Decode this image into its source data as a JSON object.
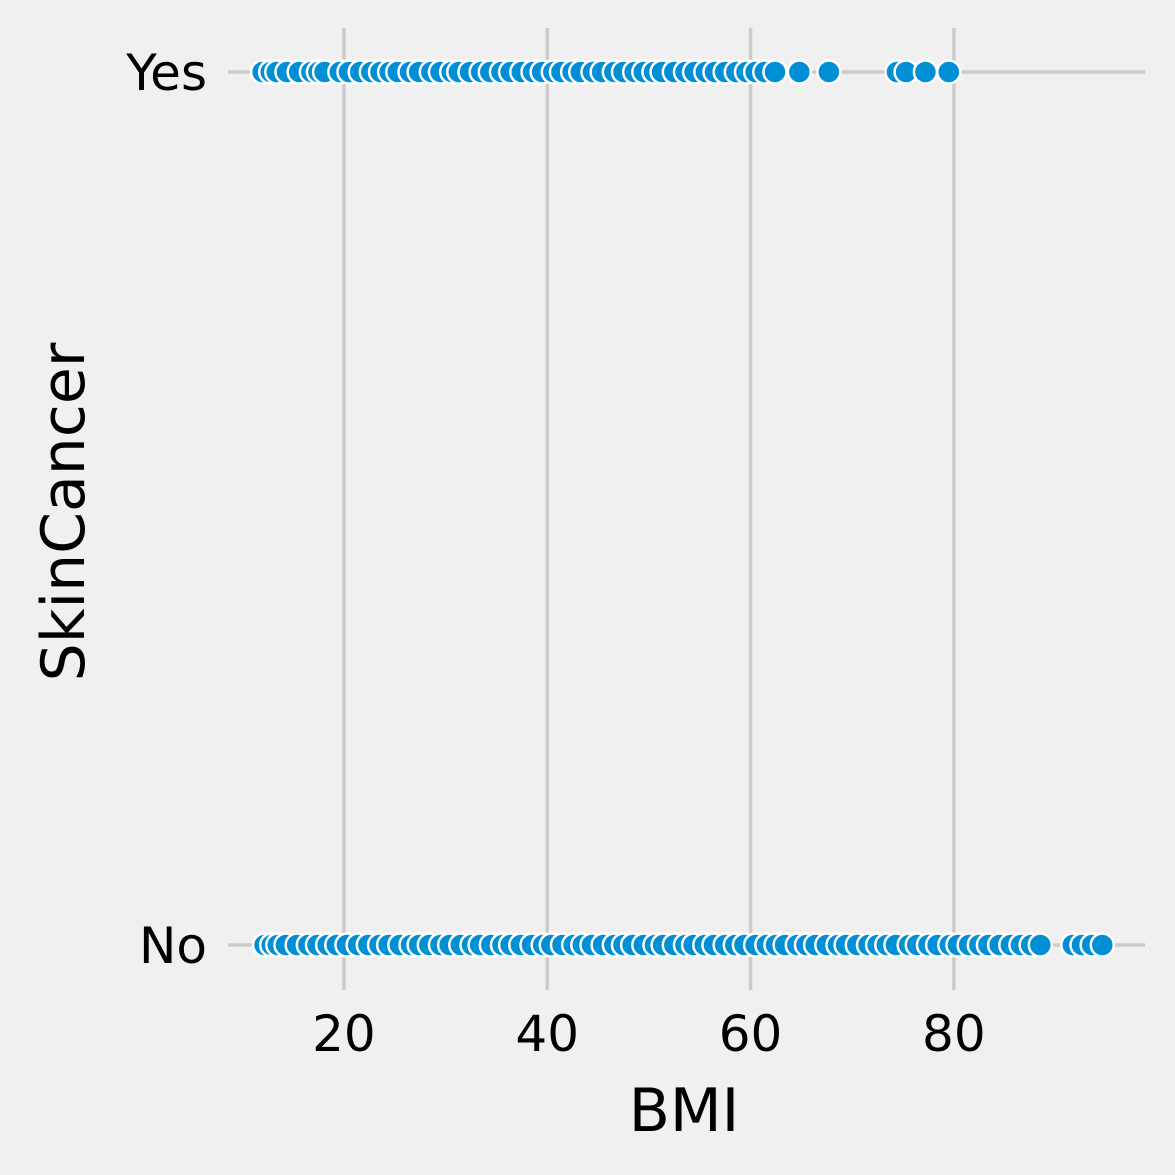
{
  "chart_data": {
    "type": "scatter",
    "xlabel": "BMI",
    "ylabel": "SkinCancer",
    "xlim": [
      8.6,
      98.8
    ],
    "x_ticks": [
      20,
      40,
      60,
      80
    ],
    "y_categories": [
      "Yes",
      "No"
    ],
    "grid": true,
    "series": [
      {
        "category": "Yes",
        "x": [
          12.0,
          12.8,
          13.4,
          14.4,
          15.6,
          16.8,
          17.5,
          18.1,
          19.6,
          20.5,
          21.6,
          22.7,
          23.6,
          24.5,
          25.3,
          26.5,
          27.4,
          28.6,
          29.5,
          30.6,
          31.3,
          32.4,
          33.5,
          34.4,
          35.5,
          36.4,
          37.5,
          38.6,
          39.5,
          40.6,
          41.4,
          42.5,
          43.3,
          44.5,
          45.4,
          46.6,
          47.5,
          48.6,
          49.5,
          50.5,
          51.3,
          52.5,
          53.6,
          54.5,
          55.6,
          56.5,
          57.5,
          58.6,
          59.6,
          60.5,
          61.4,
          62.4,
          64.8,
          67.7,
          74.4,
          75.3,
          77.2,
          79.5
        ],
        "color": "#008fd5"
      },
      {
        "category": "No",
        "x": [
          12.2,
          12.9,
          13.5,
          14.3,
          15.4,
          16.5,
          17.4,
          18.4,
          19.3,
          20.3,
          21.4,
          22.4,
          23.5,
          24.4,
          25.5,
          26.6,
          27.4,
          28.4,
          29.5,
          30.4,
          31.5,
          32.6,
          33.4,
          34.5,
          35.6,
          36.4,
          37.4,
          38.5,
          39.6,
          40.4,
          41.5,
          42.6,
          43.5,
          44.4,
          45.5,
          46.6,
          47.5,
          48.4,
          49.5,
          50.6,
          51.4,
          52.5,
          53.6,
          54.4,
          55.5,
          56.4,
          57.5,
          58.5,
          59.4,
          60.5,
          61.6,
          62.5,
          63.4,
          64.6,
          65.5,
          66.4,
          67.5,
          68.6,
          69.4,
          70.5,
          71.6,
          72.5,
          73.4,
          74.3,
          75.6,
          76.4,
          77.5,
          78.4,
          79.6,
          80.4,
          81.5,
          82.5,
          83.4,
          84.5,
          85.6,
          86.6,
          87.6,
          88.5,
          91.7,
          92.6,
          93.6,
          94.6
        ],
        "color": "#008fd5"
      }
    ]
  }
}
